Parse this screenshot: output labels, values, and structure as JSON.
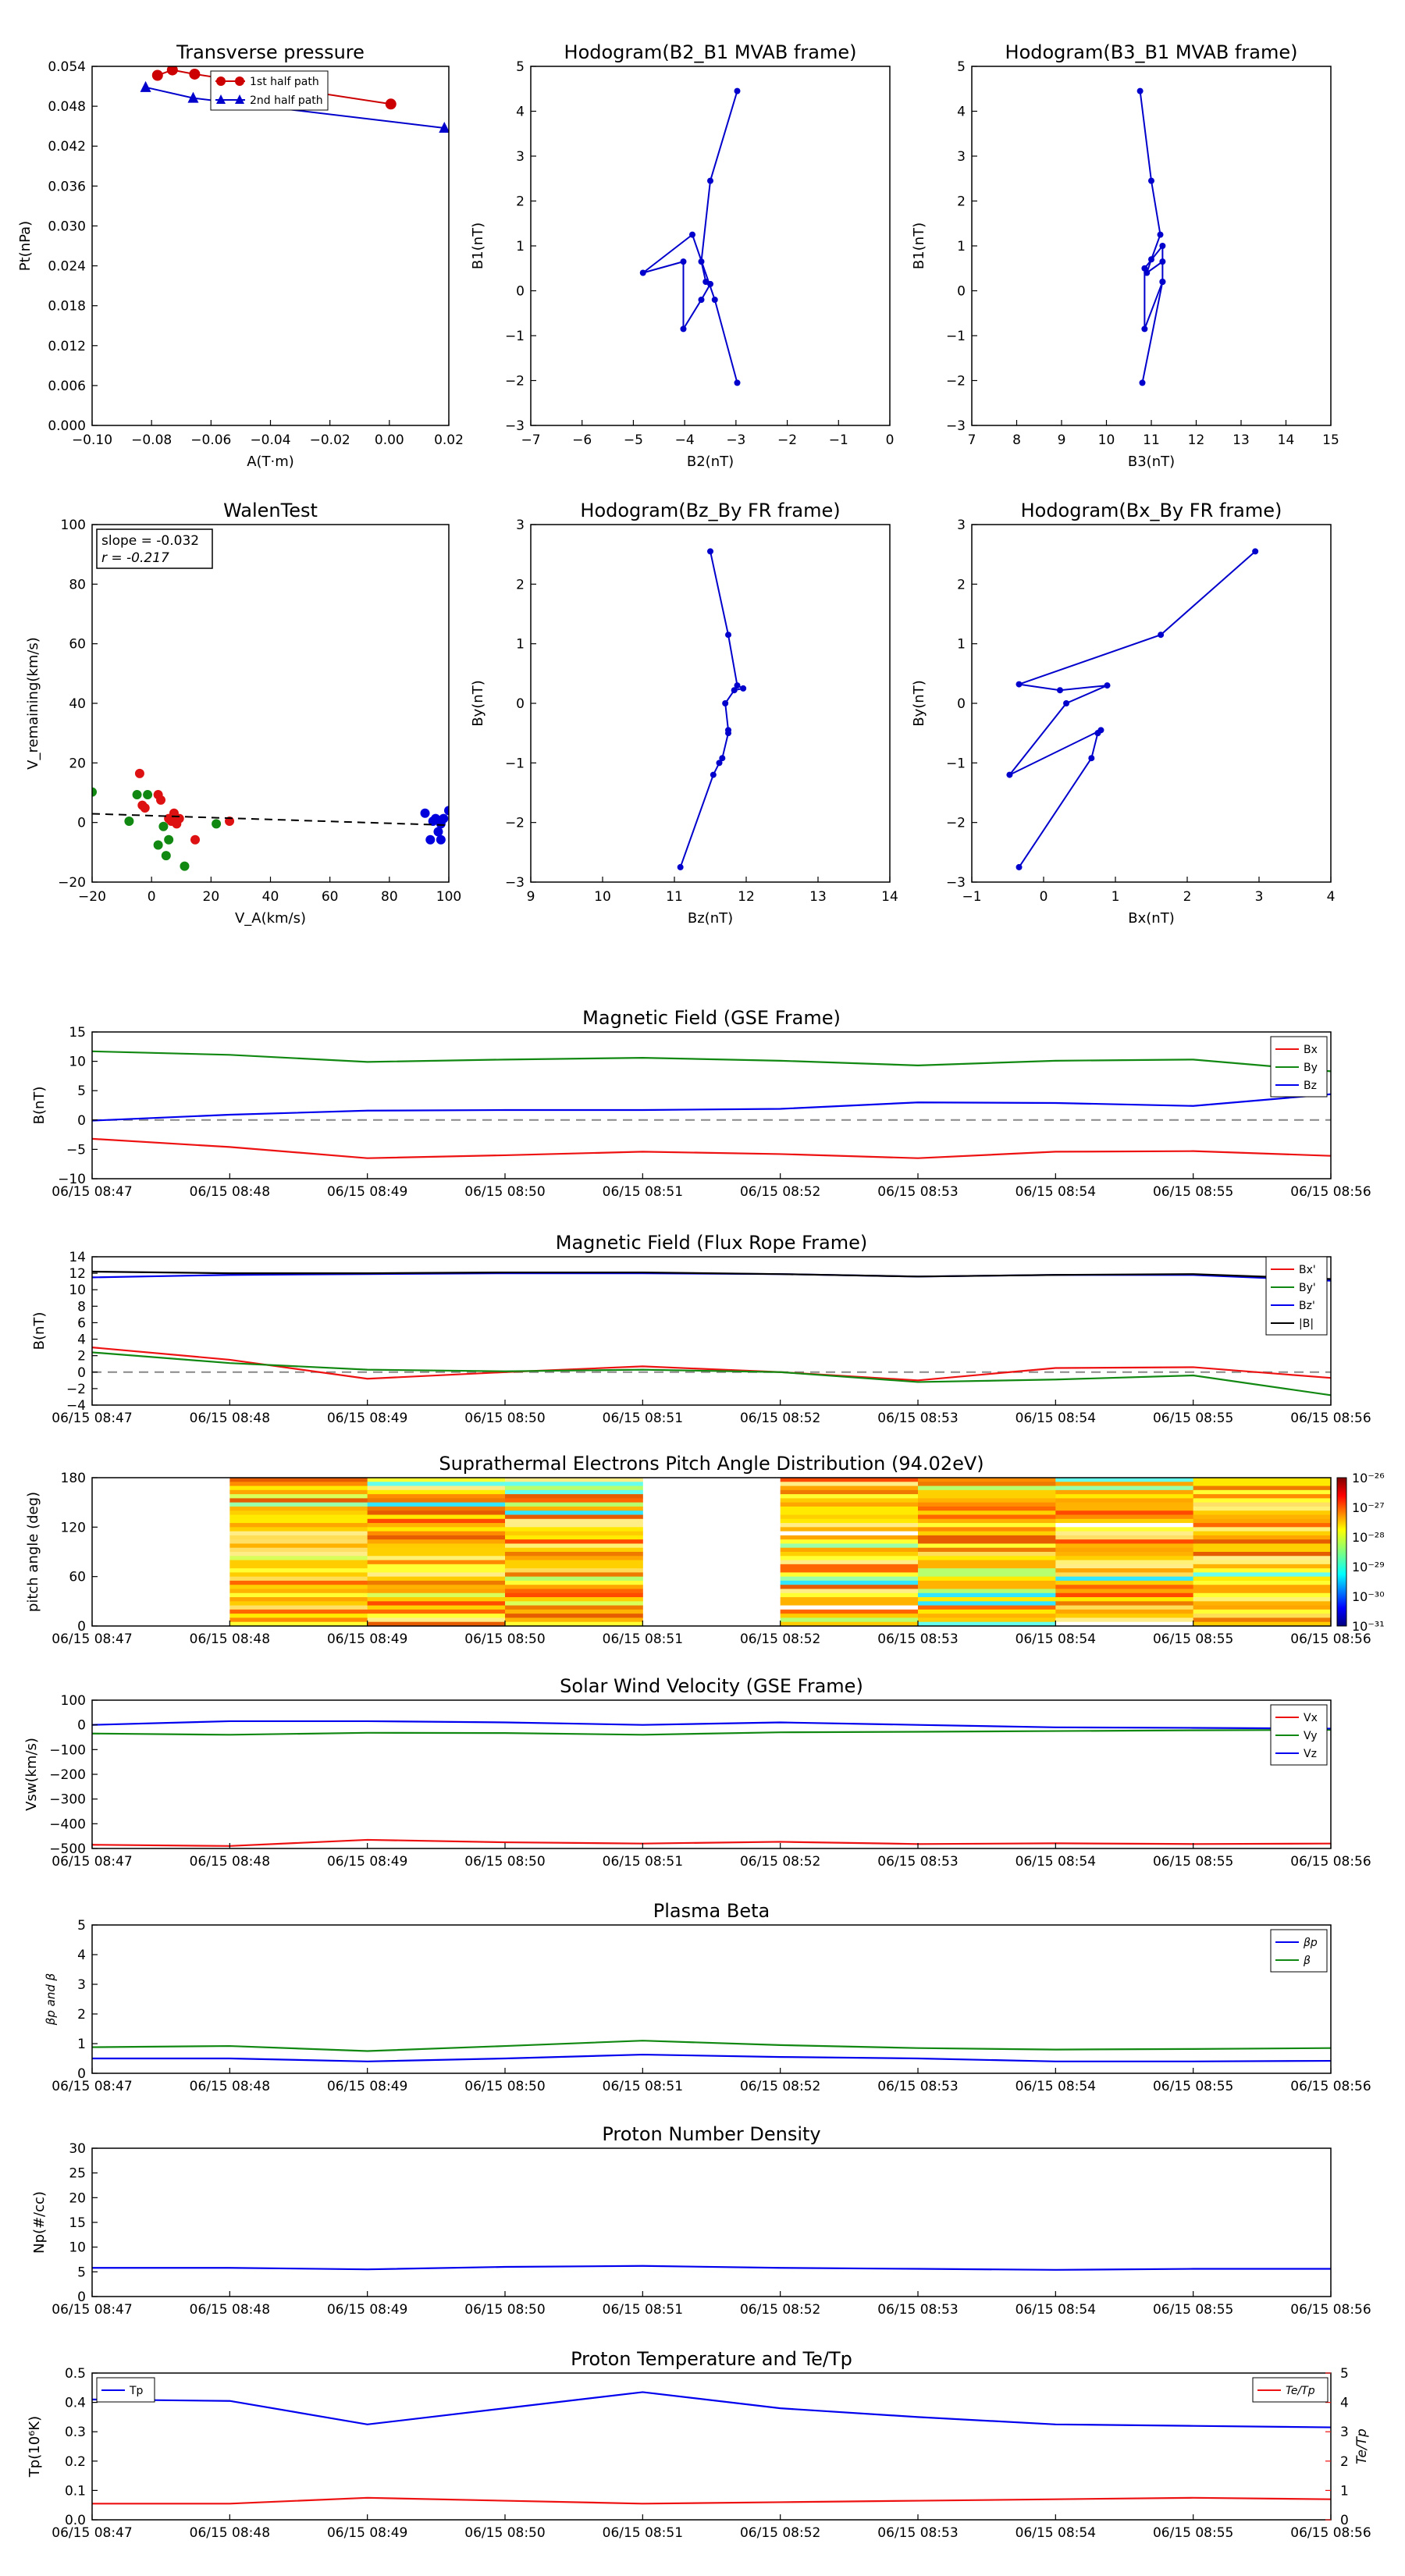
{
  "figure": {
    "time_ticks": [
      "06/15 08:47",
      "06/15 08:48",
      "06/15 08:49",
      "06/15 08:50",
      "06/15 08:51",
      "06/15 08:52",
      "06/15 08:53",
      "06/15 08:54",
      "06/15 08:55",
      "06/15 08:56"
    ]
  },
  "chart_data": [
    {
      "id": "pt",
      "type": "line",
      "title": "Transverse pressure",
      "xlabel": "A(T·m)",
      "ylabel": "Pt(nPa)",
      "xlim": [
        -0.1,
        0.02
      ],
      "ylim": [
        0,
        0.06
      ],
      "xticks": [
        "−0.10",
        "−0.08",
        "−0.06",
        "−0.04",
        "−0.02",
        "0.00",
        "0.02"
      ],
      "yticks": [
        "0.000",
        "0.006",
        "0.012",
        "0.018",
        "0.024",
        "0.030",
        "0.036",
        "0.042",
        "0.048",
        "0.054"
      ],
      "legend": {
        "loc": "top-center"
      },
      "series": [
        {
          "name": "1st half path",
          "color": "#cc0000",
          "marker": "circle",
          "x": [
            -0.078,
            -0.073,
            -0.0655,
            0.0005
          ],
          "y": [
            0.0585,
            0.0594,
            0.0587,
            0.0537
          ]
        },
        {
          "name": "2nd half path",
          "color": "#0000cc",
          "marker": "triangle",
          "x": [
            -0.082,
            -0.066,
            0.0185
          ],
          "y": [
            0.0565,
            0.0547,
            0.0497
          ]
        }
      ]
    },
    {
      "id": "h1",
      "type": "line",
      "title": "Hodogram(B2_B1 MVAB frame)",
      "xlabel": "B2(nT)",
      "ylabel": "B1(nT)",
      "xlim": [
        -7.5,
        0.5
      ],
      "ylim": [
        -3,
        5
      ],
      "xticks": [
        "−7",
        "−6",
        "−5",
        "−4",
        "−3",
        "−2",
        "−1",
        "0"
      ],
      "yticks": [
        "−3",
        "−2",
        "−1",
        "0",
        "1",
        "2",
        "3",
        "4",
        "5"
      ],
      "color": "#0000cc",
      "x": [
        -2.9,
        -3.5,
        -3.7,
        -3.6,
        -3.5,
        -3.7,
        -4.1,
        -4.1,
        -5.0,
        -3.9,
        -3.4,
        -2.9
      ],
      "y": [
        4.45,
        2.45,
        0.65,
        0.2,
        0.15,
        -0.2,
        -0.85,
        0.65,
        0.4,
        1.25,
        -0.2,
        -2.05
      ]
    },
    {
      "id": "h2",
      "type": "line",
      "title": "Hodogram(B3_B1 MVAB frame)",
      "xlabel": "B3(nT)",
      "ylabel": "B1(nT)",
      "xlim": [
        7,
        15
      ],
      "ylim": [
        -3,
        5
      ],
      "xticks": [
        "7",
        "8",
        "9",
        "10",
        "11",
        "12",
        "13",
        "14",
        "15"
      ],
      "yticks": [
        "−3",
        "−2",
        "−1",
        "0",
        "1",
        "2",
        "3",
        "4",
        "5"
      ],
      "color": "#0000cc",
      "x": [
        10.75,
        11.0,
        11.2,
        11.0,
        10.9,
        11.25,
        11.25,
        10.85,
        10.85,
        11.25,
        11.25,
        10.8
      ],
      "y": [
        4.45,
        2.45,
        1.25,
        0.7,
        0.4,
        0.65,
        0.2,
        -0.85,
        0.5,
        1.0,
        0.2,
        -2.05
      ]
    },
    {
      "id": "walen",
      "type": "scatter",
      "title": "WalenTest",
      "xlabel": "V_A(km/s)",
      "ylabel": "V_remaining(km/s)",
      "xlim": [
        -25,
        110
      ],
      "ylim": [
        -25,
        110
      ],
      "xticks": [
        "−20",
        "0",
        "20",
        "40",
        "60",
        "80",
        "100"
      ],
      "yticks": [
        "−20",
        "0",
        "20",
        "40",
        "60",
        "80",
        "100"
      ],
      "annotation": [
        "slope = -0.032",
        "r = -0.217"
      ],
      "fit": {
        "slope": -0.032,
        "intercept": 0.0
      },
      "series": [
        {
          "color": "#dd1111",
          "x": [
            -7,
            -6,
            -5,
            0,
            1,
            4,
            5,
            6,
            7,
            8,
            14,
            27
          ],
          "y": [
            16,
            4,
            3,
            8,
            6,
            -1,
            -2,
            1,
            -3,
            -1,
            -9,
            -2
          ]
        },
        {
          "color": "#118811",
          "x": [
            -25,
            -11,
            -8,
            -4,
            0,
            2,
            3,
            4,
            10,
            22
          ],
          "y": [
            9,
            -2,
            8,
            8,
            -11,
            -4,
            -15,
            -9,
            -19,
            -3
          ]
        },
        {
          "color": "#0000dd",
          "x": [
            101,
            103,
            104,
            105,
            106,
            107,
            107,
            108,
            110
          ],
          "y": [
            1,
            -9,
            -2,
            -1,
            -6,
            -3,
            -9,
            -1,
            2
          ]
        }
      ]
    },
    {
      "id": "h3",
      "type": "line",
      "title": "Hodogram(Bz_By FR frame)",
      "xlabel": "Bz(nT)",
      "ylabel": "By(nT)",
      "xlim": [
        8.5,
        14.5
      ],
      "ylim": [
        -3,
        3
      ],
      "xticks": [
        "9",
        "10",
        "11",
        "12",
        "13",
        "14"
      ],
      "yticks": [
        "−3",
        "−2",
        "−1",
        "0",
        "1",
        "2",
        "3"
      ],
      "color": "#0000cc",
      "x": [
        11.5,
        11.8,
        11.95,
        12.05,
        11.9,
        11.75,
        11.8,
        11.8,
        11.7,
        11.65,
        11.55,
        11.0
      ],
      "y": [
        2.55,
        1.15,
        0.3,
        0.25,
        0.22,
        0.0,
        -0.45,
        -0.5,
        -0.92,
        -1.0,
        -1.2,
        -2.75
      ]
    },
    {
      "id": "h4",
      "type": "line",
      "title": "Hodogram(Bx_By FR frame)",
      "xlabel": "Bx(nT)",
      "ylabel": "By(nT)",
      "xlim": [
        -1.5,
        4.2
      ],
      "ylim": [
        -3,
        3
      ],
      "xticks": [
        "−1",
        "0",
        "1",
        "2",
        "3",
        "4"
      ],
      "yticks": [
        "−3",
        "−2",
        "−1",
        "0",
        "1",
        "2",
        "3"
      ],
      "color": "#0000cc",
      "x": [
        3.0,
        1.5,
        -0.75,
        -0.1,
        0.65,
        0.0,
        -0.9,
        0.55,
        0.5,
        0.5,
        0.4,
        -0.75
      ],
      "y": [
        2.55,
        1.15,
        0.32,
        0.22,
        0.3,
        0.0,
        -1.2,
        -0.45,
        -0.5,
        -0.5,
        -0.92,
        -2.75
      ]
    },
    {
      "id": "mag",
      "type": "line",
      "title": "Magnetic Field (GSE Frame)",
      "ylabel": "B(nT)",
      "ylim": [
        -10,
        15
      ],
      "yticks": [
        "−10",
        "−5",
        "0",
        "5",
        "10",
        "15"
      ],
      "zero_line": true,
      "legend": {
        "loc": "top-right"
      },
      "series": [
        {
          "name": "Bx",
          "color": "#ee1111",
          "values": [
            -3.2,
            -4.6,
            -6.5,
            -6.0,
            -5.4,
            -5.8,
            -6.5,
            -5.4,
            -5.3,
            -6.1
          ]
        },
        {
          "name": "By",
          "color": "#118811",
          "values": [
            11.7,
            11.1,
            9.9,
            10.3,
            10.6,
            10.1,
            9.3,
            10.1,
            10.3,
            8.3
          ]
        },
        {
          "name": "Bz",
          "color": "#0000ee",
          "values": [
            -0.1,
            0.9,
            1.6,
            1.7,
            1.7,
            1.9,
            3.0,
            2.9,
            2.4,
            4.4
          ]
        }
      ]
    },
    {
      "id": "magfr",
      "type": "line",
      "title": "Magnetic Field (Flux Rope Frame)",
      "ylabel": "B(nT)",
      "ylim": [
        -4,
        14
      ],
      "yticks": [
        "−4",
        "−2",
        "0",
        "2",
        "4",
        "6",
        "8",
        "10",
        "12",
        "14"
      ],
      "zero_line": true,
      "legend": {
        "loc": "right"
      },
      "series": [
        {
          "name": "Bx'",
          "color": "#ee1111",
          "values": [
            3.0,
            1.5,
            -0.8,
            0.0,
            0.7,
            0.0,
            -1.0,
            0.5,
            0.6,
            -0.7
          ]
        },
        {
          "name": "By'",
          "color": "#118811",
          "values": [
            2.4,
            1.1,
            0.3,
            0.1,
            0.3,
            0.0,
            -1.2,
            -0.9,
            -0.4,
            -2.8
          ]
        },
        {
          "name": "Bz'",
          "color": "#0000ee",
          "values": [
            11.5,
            11.8,
            11.9,
            12.0,
            12.0,
            11.9,
            11.6,
            11.8,
            11.8,
            11.1
          ]
        },
        {
          "name": "|B|",
          "color": "#000000",
          "values": [
            12.2,
            12.0,
            12.0,
            12.1,
            12.1,
            11.9,
            11.6,
            11.8,
            11.9,
            11.3
          ]
        }
      ]
    },
    {
      "id": "pad",
      "type": "heatmap",
      "title": "Suprathermal Electrons Pitch Angle Distribution (94.02eV)",
      "ylabel": "pitch angle (deg)",
      "ylim": [
        0,
        180
      ],
      "yticks": [
        "0",
        "60",
        "120",
        "180"
      ],
      "colorbar": {
        "ticks": [
          "10⁻²⁶",
          "10⁻²⁷",
          "10⁻²⁸",
          "10⁻²⁹",
          "10⁻³⁰",
          "10⁻³¹"
        ]
      },
      "columns": [
        {
          "t0": 1.0,
          "t1": 2.0,
          "seed": 11,
          "has_white": false
        },
        {
          "t0": 2.0,
          "t1": 3.0,
          "seed": 23,
          "has_white": false
        },
        {
          "t0": 3.0,
          "t1": 4.0,
          "seed": 37,
          "has_white": false
        },
        {
          "t0": 5.0,
          "t1": 6.0,
          "seed": 41,
          "has_white": true
        },
        {
          "t0": 6.0,
          "t1": 7.0,
          "seed": 53,
          "has_white": false
        },
        {
          "t0": 7.0,
          "t1": 8.0,
          "seed": 67,
          "has_white": true
        },
        {
          "t0": 8.0,
          "t1": 9.0,
          "seed": 79,
          "has_white": false
        }
      ]
    },
    {
      "id": "vsw",
      "type": "line",
      "title": "Solar Wind Velocity (GSE Frame)",
      "ylabel": "Vsw(km/s)",
      "ylim": [
        -500,
        100
      ],
      "yticks": [
        "−500",
        "−400",
        "−300",
        "−200",
        "−100",
        "0",
        "100"
      ],
      "legend": {
        "loc": "top-right"
      },
      "series": [
        {
          "name": "Vx",
          "color": "#ee1111",
          "values": [
            -485,
            -490,
            -465,
            -475,
            -480,
            -473,
            -482,
            -479,
            -482,
            -480
          ]
        },
        {
          "name": "Vy",
          "color": "#118811",
          "values": [
            -35,
            -40,
            -32,
            -33,
            -40,
            -30,
            -28,
            -25,
            -22,
            -20
          ]
        },
        {
          "name": "Vz",
          "color": "#0000ee",
          "values": [
            0,
            15,
            15,
            10,
            0,
            10,
            0,
            -10,
            -12,
            -15
          ]
        }
      ]
    },
    {
      "id": "beta",
      "type": "line",
      "title": "Plasma Beta",
      "ylabel": "βp and β",
      "ylim": [
        0,
        5
      ],
      "yticks": [
        "0",
        "1",
        "2",
        "3",
        "4",
        "5"
      ],
      "legend": {
        "loc": "top-right"
      },
      "series": [
        {
          "name": "βp",
          "color": "#0000ee",
          "values": [
            0.5,
            0.5,
            0.4,
            0.5,
            0.63,
            0.55,
            0.5,
            0.4,
            0.4,
            0.42
          ]
        },
        {
          "name": "β",
          "color": "#118811",
          "values": [
            0.88,
            0.92,
            0.75,
            0.92,
            1.1,
            0.95,
            0.85,
            0.8,
            0.82,
            0.85
          ]
        }
      ]
    },
    {
      "id": "np",
      "type": "line",
      "title": "Proton Number Density",
      "ylabel": "Np(#/cc)",
      "ylim": [
        0,
        30
      ],
      "yticks": [
        "0",
        "5",
        "10",
        "15",
        "20",
        "25",
        "30"
      ],
      "series": [
        {
          "color": "#0000ee",
          "values": [
            5.8,
            5.8,
            5.5,
            6.0,
            6.2,
            5.8,
            5.6,
            5.4,
            5.6,
            5.6
          ]
        }
      ]
    },
    {
      "id": "tp",
      "type": "line",
      "title": "Proton Temperature and Te/Tp",
      "ylabel": "Tp(10⁶K)",
      "ylabel_right": "Te/Tp",
      "ylim": [
        0,
        0.5
      ],
      "yticks": [
        "0.0",
        "0.1",
        "0.2",
        "0.3",
        "0.4",
        "0.5"
      ],
      "ylim_right": [
        0,
        5
      ],
      "yticks_right": [
        "0",
        "1",
        "2",
        "3",
        "4",
        "5"
      ],
      "series": [
        {
          "name": "Tp",
          "color": "#0000ee",
          "axis": "left",
          "values": [
            0.41,
            0.405,
            0.325,
            0.38,
            0.435,
            0.38,
            0.35,
            0.325,
            0.32,
            0.315
          ]
        },
        {
          "name": "Te/Tp",
          "color": "#ee1111",
          "axis": "right",
          "values": [
            0.55,
            0.55,
            0.75,
            0.65,
            0.55,
            0.6,
            0.65,
            0.7,
            0.75,
            0.7
          ]
        }
      ]
    }
  ]
}
